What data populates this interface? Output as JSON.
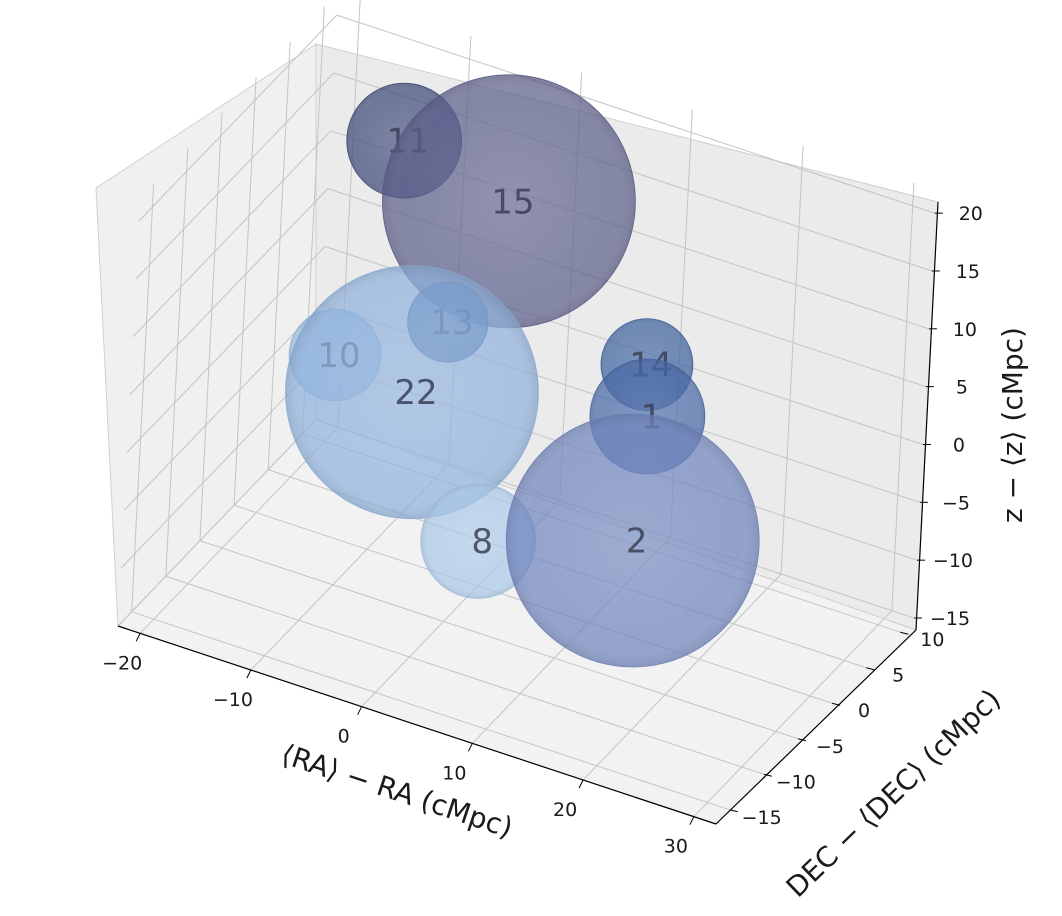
{
  "chart_data": {
    "type": "scatter",
    "projection": "3d",
    "title": "",
    "xlabel": "⟨RA⟩ − RA (cMpc)",
    "ylabel": "DEC − ⟨DEC⟩ (cMpc)",
    "zlabel": "z − ⟨z⟩  (cMpc)",
    "xlim": [
      -22,
      32
    ],
    "ylim": [
      -17,
      12
    ],
    "zlim": [
      -15,
      22
    ],
    "x_ticks": [
      "−20",
      "−10",
      "0",
      "10",
      "20",
      "30"
    ],
    "y_ticks": [
      "−15",
      "−10",
      "−5",
      "0",
      "5",
      "10"
    ],
    "z_ticks": [
      "−15",
      "−10",
      "−5",
      "0",
      "5",
      "10",
      "15",
      "20"
    ],
    "grid": true,
    "marker": "sphere",
    "spheres": [
      {
        "label": "15",
        "color": "#5b5e8a",
        "x": -3,
        "y": 7,
        "z": 13,
        "radius": 11
      },
      {
        "label": "11",
        "color": "#3f4a78",
        "x": -12,
        "y": 6,
        "z": 16,
        "radius": 5
      },
      {
        "label": "10",
        "color": "#9cbde0",
        "x": -12,
        "y": -3,
        "z": 3,
        "radius": 4
      },
      {
        "label": "22",
        "color": "#8fb2dd",
        "x": -5,
        "y": -3,
        "z": 2,
        "radius": 11
      },
      {
        "label": "13",
        "color": "#3a5f9c",
        "x": -5,
        "y": 2,
        "z": 5,
        "radius": 3.5
      },
      {
        "label": "14",
        "color": "#3f62a0",
        "x": 10,
        "y": 7,
        "z": 3,
        "radius": 4
      },
      {
        "label": "1",
        "color": "#4668a6",
        "x": 12,
        "y": 4,
        "z": 1,
        "radius": 5
      },
      {
        "label": "8",
        "color": "#a9c7e8",
        "x": 5,
        "y": -9,
        "z": -4,
        "radius": 5
      },
      {
        "label": "2",
        "color": "#6f84bc",
        "x": 17,
        "y": -6,
        "z": -2,
        "radius": 11
      }
    ]
  }
}
